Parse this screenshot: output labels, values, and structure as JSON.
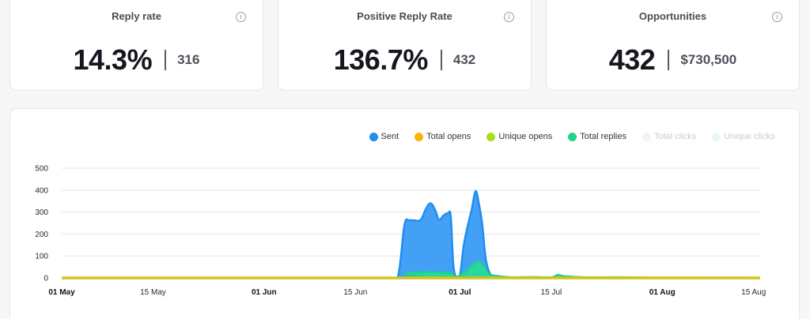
{
  "cards": [
    {
      "title": "Reply rate",
      "value": "14.3%",
      "sub": "316"
    },
    {
      "title": "Positive Reply Rate",
      "value": "136.7%",
      "sub": "432"
    },
    {
      "title": "Opportunities",
      "value": "432",
      "sub": "$730,500"
    }
  ],
  "legend": [
    {
      "label": "Sent",
      "color": "#1f8ef1",
      "muted": false
    },
    {
      "label": "Total opens",
      "color": "#f5b800",
      "muted": false
    },
    {
      "label": "Unique opens",
      "color": "#a8e01a",
      "muted": false
    },
    {
      "label": "Total replies",
      "color": "#1ed38b",
      "muted": false
    },
    {
      "label": "Total clicks",
      "color": "#eef5f9",
      "muted": true
    },
    {
      "label": "Unique clicks",
      "color": "#eaf6f8",
      "muted": true
    }
  ],
  "chart_data": {
    "type": "area",
    "y_ticks": [
      "0",
      "100",
      "200",
      "300",
      "400",
      "500"
    ],
    "ylim": [
      0,
      500
    ],
    "xlim_days": [
      0,
      107
    ],
    "x_ticks": [
      {
        "label": "01 May",
        "day": 0,
        "bold": true
      },
      {
        "label": "15 May",
        "day": 14,
        "bold": false
      },
      {
        "label": "01 Jun",
        "day": 31,
        "bold": true
      },
      {
        "label": "15 Jun",
        "day": 45,
        "bold": false
      },
      {
        "label": "01 Jul",
        "day": 61,
        "bold": true
      },
      {
        "label": "15 Jul",
        "day": 75,
        "bold": false
      },
      {
        "label": "01 Aug",
        "day": 92,
        "bold": true
      },
      {
        "label": "15 Aug",
        "day": 106,
        "bold": false
      }
    ],
    "series": [
      {
        "name": "Sent",
        "color": "#1f8ef1",
        "fill": "#3a9bf3",
        "points": [
          [
            0,
            0
          ],
          [
            50,
            0
          ],
          [
            51.5,
            5
          ],
          [
            52.5,
            240
          ],
          [
            53.2,
            262
          ],
          [
            54,
            262
          ],
          [
            55,
            265
          ],
          [
            55.8,
            315
          ],
          [
            56.5,
            340
          ],
          [
            57.2,
            310
          ],
          [
            57.8,
            265
          ],
          [
            58.5,
            285
          ],
          [
            59.2,
            295
          ],
          [
            59.6,
            280
          ],
          [
            60,
            60
          ],
          [
            60.5,
            0
          ],
          [
            61,
            10
          ],
          [
            61.6,
            150
          ],
          [
            62.3,
            250
          ],
          [
            62.8,
            310
          ],
          [
            63.4,
            395
          ],
          [
            63.9,
            340
          ],
          [
            64.4,
            250
          ],
          [
            65,
            80
          ],
          [
            65.8,
            10
          ],
          [
            66.5,
            0
          ],
          [
            107,
            0
          ]
        ]
      },
      {
        "name": "Total replies",
        "color": "#1ed38b",
        "fill": "#2bd99a",
        "points": [
          [
            0,
            0
          ],
          [
            51,
            0
          ],
          [
            52.5,
            20
          ],
          [
            55,
            25
          ],
          [
            57,
            25
          ],
          [
            59.5,
            22
          ],
          [
            60.3,
            5
          ],
          [
            61,
            12
          ],
          [
            62,
            30
          ],
          [
            63,
            60
          ],
          [
            63.8,
            72
          ],
          [
            64.6,
            55
          ],
          [
            65.5,
            18
          ],
          [
            67,
            8
          ],
          [
            69,
            3
          ],
          [
            72,
            4
          ],
          [
            75,
            3
          ],
          [
            76,
            14
          ],
          [
            77,
            8
          ],
          [
            80,
            3
          ],
          [
            85,
            3
          ],
          [
            90,
            2
          ],
          [
            95,
            2
          ],
          [
            107,
            1
          ]
        ]
      },
      {
        "name": "Total opens",
        "color": "#d4c41a",
        "fill": "#d4c41a",
        "points": [
          [
            0,
            0
          ],
          [
            107,
            0
          ]
        ]
      }
    ]
  }
}
